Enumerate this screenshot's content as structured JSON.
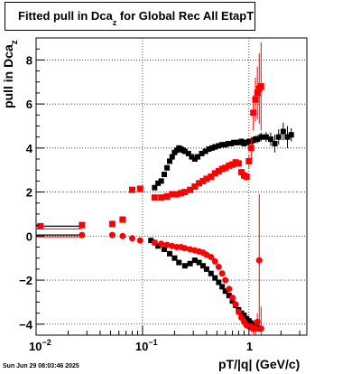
{
  "title": {
    "main": "Fitted pull in Dca",
    "sub": "z",
    "rest": " for Global Rec All EtapT"
  },
  "footer": {
    "timestamp": "Sun Jun 29 08:03:46 2025"
  },
  "chart_data": {
    "type": "scatter",
    "title": "Fitted pull in Dca_z for Global Rec All EtapT",
    "xlabel": "pT/|q| (GeV/c)",
    "ylabel": "pull in Dca_z",
    "ylabel_parts": {
      "main": "pull in Dca",
      "sub": "z"
    },
    "x_scale": "log",
    "xlim": [
      0.01,
      3.5
    ],
    "ylim": [
      -4.5,
      9
    ],
    "grid": true,
    "x_ticks": [
      {
        "value": 0.01,
        "label": "10",
        "exp": "−2"
      },
      {
        "value": 0.1,
        "label": "10",
        "exp": "−1"
      },
      {
        "value": 1,
        "label": "1",
        "exp": ""
      }
    ],
    "y_ticks": [
      -4,
      -2,
      0,
      2,
      4,
      6,
      8
    ],
    "colors": {
      "black": "#000000",
      "red": "#ff0000"
    },
    "series": [
      {
        "marker": "square",
        "color": "#000000",
        "x": [
          0.13,
          0.14,
          0.15,
          0.16,
          0.17,
          0.18,
          0.19,
          0.2,
          0.21,
          0.22,
          0.23,
          0.24,
          0.25,
          0.27,
          0.29,
          0.31,
          0.33,
          0.36,
          0.39,
          0.42,
          0.45,
          0.48,
          0.52,
          0.56,
          0.6,
          0.64,
          0.68,
          0.72,
          0.76,
          0.8,
          0.85,
          0.9,
          0.95,
          1.0,
          1.05,
          1.1,
          1.15,
          1.2,
          1.3,
          1.45,
          1.6,
          1.75,
          1.9,
          2.1,
          2.3,
          2.5
        ],
        "y": [
          2.2,
          2.4,
          2.5,
          2.8,
          3.1,
          3.4,
          3.6,
          3.8,
          3.9,
          4.0,
          3.95,
          3.9,
          3.85,
          3.75,
          3.6,
          3.5,
          3.6,
          3.75,
          3.85,
          3.95,
          4.0,
          4.05,
          4.1,
          4.15,
          4.15,
          4.2,
          4.2,
          4.25,
          4.25,
          4.25,
          4.3,
          4.2,
          4.25,
          4.3,
          4.3,
          4.35,
          4.4,
          4.4,
          4.5,
          4.5,
          4.4,
          4.2,
          4.5,
          4.75,
          4.5,
          4.6
        ],
        "yerr": [
          0.1,
          0.1,
          0.1,
          0.1,
          0.1,
          0.1,
          0.1,
          0.1,
          0.1,
          0.1,
          0.1,
          0.1,
          0.1,
          0.1,
          0.1,
          0.1,
          0.1,
          0.1,
          0.1,
          0.1,
          0.1,
          0.1,
          0.1,
          0.1,
          0.1,
          0.1,
          0.1,
          0.1,
          0.1,
          0.1,
          0.1,
          0.12,
          0.12,
          0.12,
          0.14,
          0.15,
          0.16,
          0.18,
          0.2,
          0.22,
          0.3,
          0.4,
          0.35,
          0.4,
          0.5,
          0.3
        ]
      },
      {
        "marker": "square",
        "color": "#000000",
        "x": [
          0.12,
          0.13,
          0.14,
          0.16,
          0.18,
          0.2,
          0.22,
          0.25,
          0.28,
          0.31,
          0.34,
          0.37,
          0.4,
          0.44,
          0.48,
          0.52,
          0.56,
          0.6,
          0.65,
          0.7,
          0.75,
          0.8,
          0.85,
          0.9,
          0.95,
          1.0,
          1.05,
          1.1,
          1.15,
          1.2,
          1.25
        ],
        "y": [
          -0.2,
          -0.3,
          -0.45,
          -0.6,
          -0.8,
          -1.0,
          -1.2,
          -1.35,
          -1.25,
          -1.1,
          -1.2,
          -1.35,
          -1.5,
          -1.7,
          -1.9,
          -2.1,
          -2.3,
          -2.5,
          -2.7,
          -2.95,
          -3.15,
          -3.35,
          -3.5,
          -3.6,
          -3.75,
          -3.85,
          -3.95,
          -4.05,
          -4.1,
          -4.15,
          -4.2
        ],
        "yerr": [
          0.05,
          0.05,
          0.05,
          0.05,
          0.05,
          0.05,
          0.05,
          0.05,
          0.05,
          0.05,
          0.05,
          0.05,
          0.05,
          0.05,
          0.05,
          0.05,
          0.05,
          0.05,
          0.06,
          0.06,
          0.06,
          0.07,
          0.07,
          0.08,
          0.08,
          0.1,
          0.1,
          0.12,
          0.12,
          0.14,
          0.15
        ]
      },
      {
        "marker": "square",
        "color": "#ff0000",
        "x": [
          0.011,
          0.027,
          0.052,
          0.065,
          0.08,
          0.095,
          0.13,
          0.15,
          0.17,
          0.19,
          0.21,
          0.23,
          0.25,
          0.28,
          0.31,
          0.34,
          0.37,
          0.4,
          0.44,
          0.48,
          0.52,
          0.56,
          0.6,
          0.65,
          0.7,
          0.75,
          0.8,
          0.85,
          0.9,
          0.95,
          1.0,
          1.05,
          1.1,
          1.15,
          1.2,
          1.25,
          1.3
        ],
        "y": [
          0.45,
          0.5,
          0.55,
          0.75,
          2.1,
          2.15,
          1.75,
          1.75,
          1.8,
          1.9,
          1.9,
          1.95,
          2.0,
          2.1,
          2.25,
          2.4,
          2.5,
          2.6,
          2.7,
          2.85,
          2.95,
          3.05,
          3.1,
          3.2,
          3.25,
          3.35,
          3.3,
          2.9,
          2.75,
          2.7,
          3.4,
          4.0,
          5.6,
          6.2,
          6.5,
          6.7,
          6.8
        ],
        "yerr": [
          0.05,
          0.06,
          0.07,
          0.08,
          0.12,
          0.1,
          0.08,
          0.08,
          0.08,
          0.08,
          0.08,
          0.08,
          0.08,
          0.08,
          0.08,
          0.08,
          0.08,
          0.08,
          0.08,
          0.08,
          0.08,
          0.1,
          0.1,
          0.1,
          0.12,
          0.12,
          0.14,
          0.15,
          0.18,
          0.2,
          0.3,
          0.5,
          0.8,
          1.0,
          1.2,
          1.6,
          2.0
        ]
      },
      {
        "marker": "circle",
        "color": "#ff0000",
        "x": [
          0.027,
          0.052,
          0.065,
          0.08,
          0.095,
          0.13,
          0.15,
          0.17,
          0.19,
          0.21,
          0.23,
          0.25,
          0.28,
          0.31,
          0.34,
          0.37,
          0.4,
          0.44,
          0.48,
          0.52,
          0.56,
          0.6,
          0.65,
          0.7,
          0.75,
          0.8,
          0.85,
          0.9,
          0.95,
          1.0,
          1.05,
          1.1,
          1.15,
          1.2,
          1.25,
          1.3
        ],
        "y": [
          0.05,
          0.05,
          0.0,
          -0.1,
          -0.2,
          -0.3,
          -0.35,
          -0.4,
          -0.45,
          -0.5,
          -0.5,
          -0.55,
          -0.6,
          -0.65,
          -0.7,
          -0.75,
          -0.85,
          -0.95,
          -1.15,
          -1.4,
          -1.7,
          -2.0,
          -2.4,
          -2.8,
          -3.1,
          -3.45,
          -3.7,
          -3.9,
          -4.05,
          -4.1,
          -4.15,
          -4.2,
          -4.2,
          -3.9,
          -1.1,
          -4.2
        ],
        "yerr": [
          0.02,
          0.02,
          0.02,
          0.02,
          0.03,
          0.03,
          0.03,
          0.03,
          0.03,
          0.03,
          0.03,
          0.03,
          0.03,
          0.03,
          0.04,
          0.04,
          0.04,
          0.04,
          0.05,
          0.05,
          0.05,
          0.06,
          0.06,
          0.07,
          0.08,
          0.09,
          0.1,
          0.12,
          0.14,
          0.16,
          0.2,
          0.25,
          0.3,
          0.4,
          3.0,
          1.0
        ]
      }
    ]
  }
}
